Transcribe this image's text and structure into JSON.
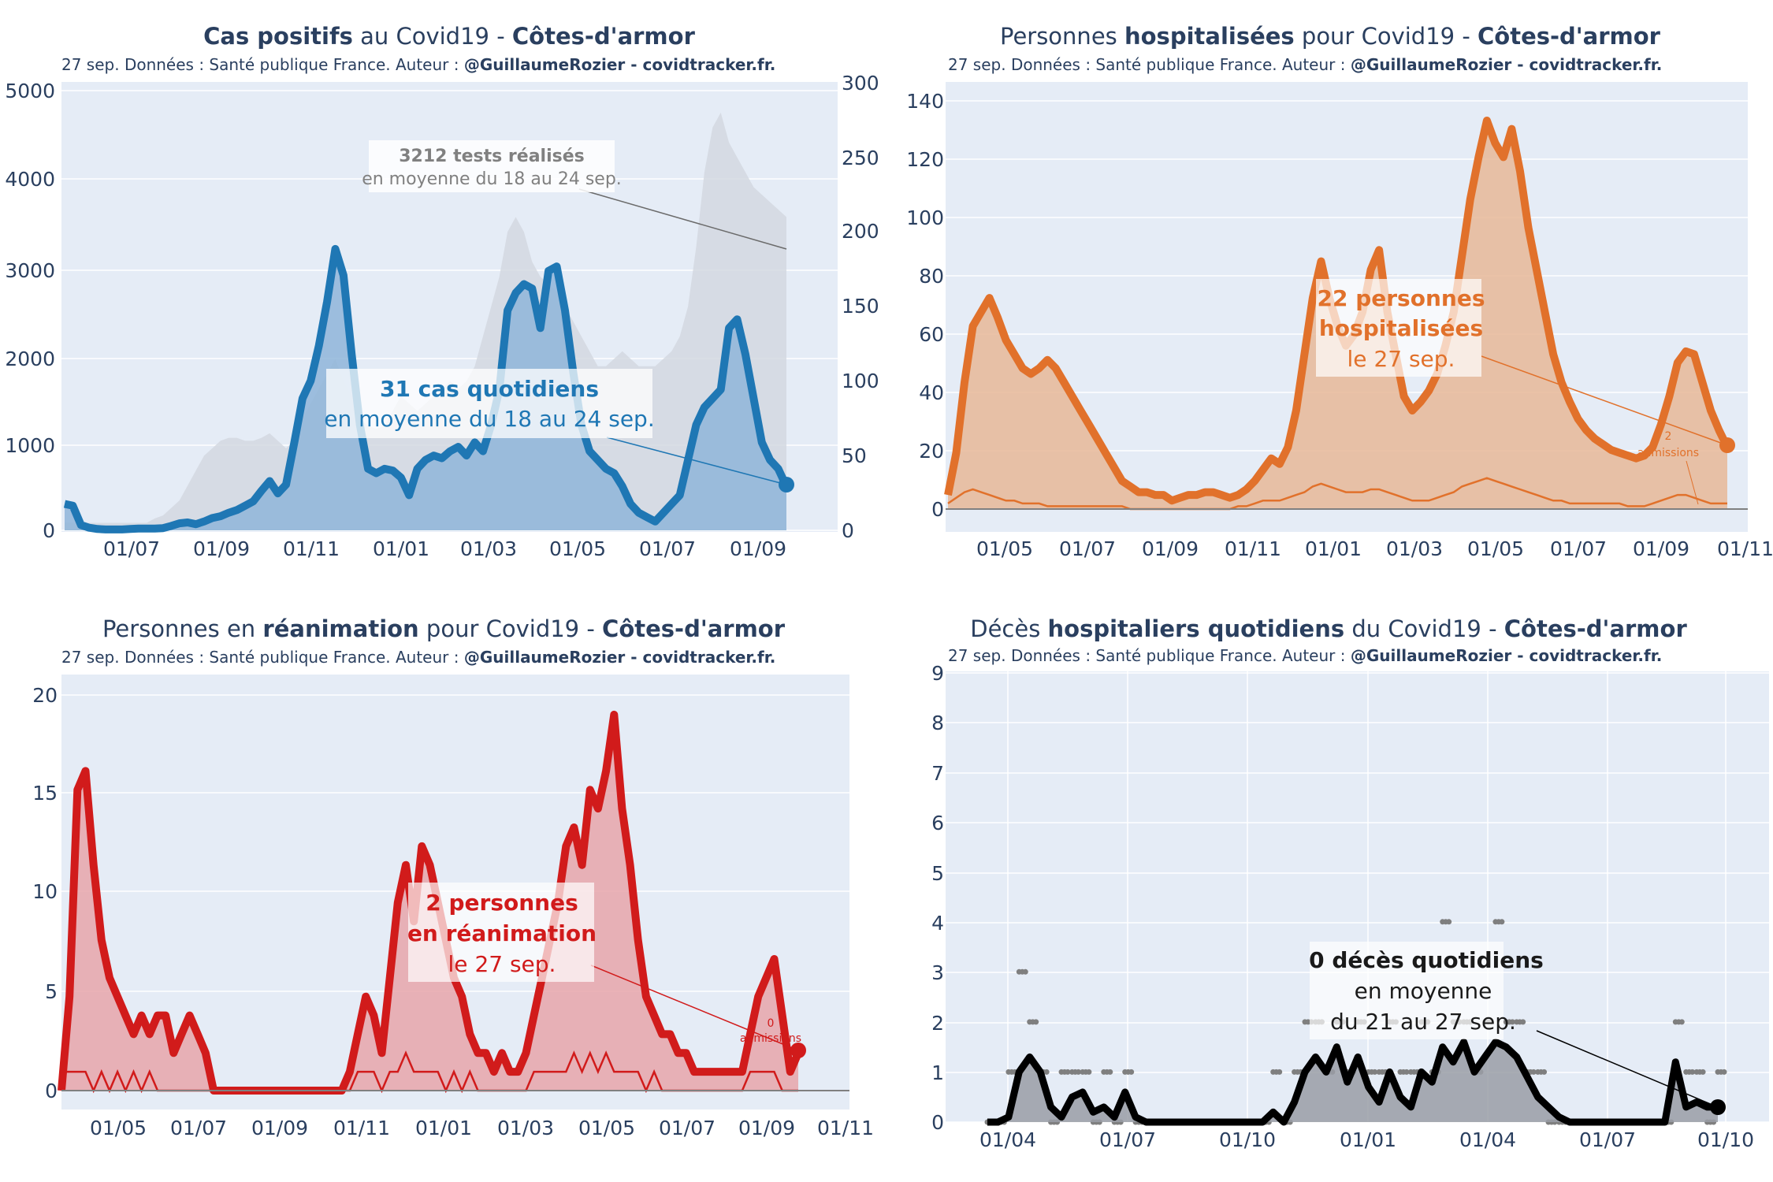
{
  "chart_data": [
    {
      "type": "line",
      "id": "cas",
      "title_parts": [
        {
          "text": "Cas positifs",
          "bold": true
        },
        {
          "text": " au Covid19 - ",
          "bold": false
        },
        {
          "text": "Côtes-d'armor",
          "bold": true
        }
      ],
      "subtitle_parts": [
        {
          "text": "27 sep. Données : Santé publique France. Auteur : ",
          "bold": false
        },
        {
          "text": "@GuillaumeRozier - covidtracker.fr.",
          "bold": true
        }
      ],
      "color": "#1f77b4",
      "fill_color": "#8fb5d9",
      "secondary_color": "#d3d8e0",
      "x_ticks": [
        "01/07",
        "01/09",
        "01/11",
        "01/01",
        "01/03",
        "01/05",
        "01/07",
        "01/09"
      ],
      "ylim": [
        0,
        5000
      ],
      "y_ticks": [
        "0",
        "1000",
        "2000",
        "3000",
        "4000",
        "5000"
      ],
      "y2lim": [
        0,
        300
      ],
      "y2_ticks": [
        "0",
        "50",
        "100",
        "150",
        "200",
        "250",
        "300"
      ],
      "series": [
        {
          "name": "Cas quotidiens (moyenne 7j)",
          "values": [
            300,
            280,
            60,
            30,
            15,
            10,
            10,
            10,
            15,
            20,
            20,
            20,
            25,
            50,
            80,
            90,
            70,
            100,
            140,
            160,
            200,
            230,
            280,
            330,
            450,
            560,
            420,
            520,
            1000,
            1500,
            1700,
            2100,
            2600,
            3200,
            2900,
            2000,
            1200,
            700,
            650,
            700,
            680,
            600,
            400,
            700,
            800,
            850,
            820,
            900,
            950,
            850,
            1000,
            900,
            1200,
            1600,
            2500,
            2700,
            2800,
            2750,
            2300,
            2950,
            3000,
            2500,
            1800,
            1200,
            900,
            800,
            700,
            650,
            500,
            300,
            200,
            150,
            100,
            200,
            300,
            400,
            800,
            1200,
            1400,
            1500,
            1600,
            2300,
            2400,
            2000,
            1500,
            1000,
            800,
            700,
            500
          ]
        },
        {
          "name": "Tests réalisés (axe secondaire)",
          "values": [
            5,
            5,
            5,
            5,
            5,
            5,
            5,
            5,
            5,
            5,
            5,
            8,
            10,
            15,
            20,
            30,
            40,
            50,
            55,
            60,
            62,
            62,
            60,
            60,
            62,
            65,
            60,
            55,
            60,
            75,
            85,
            95,
            105,
            115,
            100,
            90,
            75,
            70,
            68,
            70,
            80,
            90,
            85,
            80,
            85,
            90,
            95,
            100,
            95,
            100,
            110,
            130,
            150,
            170,
            200,
            210,
            200,
            180,
            170,
            165,
            160,
            150,
            140,
            130,
            120,
            110,
            110,
            115,
            120,
            115,
            110,
            110,
            110,
            115,
            120,
            130,
            150,
            190,
            240,
            270,
            280,
            260,
            250,
            240,
            230,
            225,
            220,
            215,
            210
          ]
        }
      ],
      "annotation_main": {
        "bold": "31 cas quotidiens",
        "normal": "en moyenne du 18 au 24 sep."
      },
      "annotation_secondary": {
        "bold": "3212 tests réalisés",
        "normal": "en moyenne du 18 au 24 sep."
      }
    },
    {
      "type": "line",
      "id": "hosp",
      "title_parts": [
        {
          "text": "Personnes ",
          "bold": false
        },
        {
          "text": "hospitalisées",
          "bold": true
        },
        {
          "text": " pour Covid19 - ",
          "bold": false
        },
        {
          "text": "Côtes-d'armor",
          "bold": true
        }
      ],
      "subtitle_parts": [
        {
          "text": "27 sep. Données : Santé publique France. Auteur : ",
          "bold": false
        },
        {
          "text": "@GuillaumeRozier - covidtracker.fr.",
          "bold": true
        }
      ],
      "color": "#e1712b",
      "fill_color": "#e8b898",
      "x_ticks": [
        "01/05",
        "01/07",
        "01/09",
        "01/11",
        "01/01",
        "01/03",
        "01/05",
        "01/07",
        "01/09",
        "01/11"
      ],
      "ylim": [
        0,
        145
      ],
      "y_ticks": [
        "0",
        "20",
        "40",
        "60",
        "80",
        "100",
        "120",
        "140"
      ],
      "series": [
        {
          "name": "Hospitalisations",
          "values": [
            5,
            20,
            45,
            65,
            70,
            75,
            68,
            60,
            55,
            50,
            48,
            50,
            53,
            50,
            45,
            40,
            35,
            30,
            25,
            20,
            15,
            10,
            8,
            6,
            6,
            5,
            5,
            3,
            4,
            5,
            5,
            6,
            6,
            5,
            4,
            5,
            7,
            10,
            14,
            18,
            16,
            22,
            35,
            55,
            75,
            88,
            75,
            65,
            58,
            62,
            70,
            85,
            92,
            70,
            55,
            40,
            35,
            38,
            42,
            48,
            58,
            70,
            90,
            110,
            125,
            138,
            130,
            125,
            135,
            120,
            100,
            85,
            70,
            55,
            45,
            38,
            32,
            28,
            25,
            23,
            21,
            20,
            19,
            18,
            19,
            22,
            30,
            40,
            52,
            56,
            55,
            45,
            35,
            28,
            22
          ]
        },
        {
          "name": "Admissions",
          "values": [
            2,
            4,
            6,
            7,
            6,
            5,
            4,
            3,
            3,
            2,
            2,
            2,
            1,
            1,
            1,
            1,
            1,
            1,
            1,
            1,
            1,
            1,
            0,
            0,
            0,
            0,
            0,
            0,
            0,
            0,
            0,
            0,
            0,
            0,
            0,
            1,
            1,
            2,
            3,
            3,
            3,
            4,
            5,
            6,
            8,
            9,
            8,
            7,
            6,
            6,
            6,
            7,
            7,
            6,
            5,
            4,
            3,
            3,
            3,
            4,
            5,
            6,
            8,
            9,
            10,
            11,
            10,
            9,
            8,
            7,
            6,
            5,
            4,
            3,
            3,
            2,
            2,
            2,
            2,
            2,
            2,
            2,
            1,
            1,
            1,
            2,
            3,
            4,
            5,
            5,
            4,
            3,
            2,
            2,
            2
          ]
        }
      ],
      "annotation_main": {
        "bold_lines": [
          "22 personnes",
          "hospitalisées"
        ],
        "normal": "le 27 sep."
      },
      "annotation_secondary": {
        "line1": "2",
        "line2": "admissions"
      }
    },
    {
      "type": "line",
      "id": "rea",
      "title_parts": [
        {
          "text": "Personnes en ",
          "bold": false
        },
        {
          "text": "réanimation",
          "bold": true
        },
        {
          "text": " pour Covid19 - ",
          "bold": false
        },
        {
          "text": "Côtes-d'armor",
          "bold": true
        }
      ],
      "subtitle_parts": [
        {
          "text": "27 sep. Données : Santé publique France. Auteur : ",
          "bold": false
        },
        {
          "text": "@GuillaumeRozier - covidtracker.fr.",
          "bold": true
        }
      ],
      "color": "#d11b1b",
      "fill_color": "#e8a6aa",
      "x_ticks": [
        "01/05",
        "01/07",
        "01/09",
        "01/11",
        "01/01",
        "01/03",
        "01/05",
        "01/07",
        "01/09",
        "01/11"
      ],
      "ylim": [
        0,
        21
      ],
      "y_ticks": [
        "0",
        "5",
        "10",
        "15",
        "20"
      ],
      "series": [
        {
          "name": "Réanimation",
          "values": [
            0,
            5,
            16,
            17,
            12,
            8,
            6,
            5,
            4,
            3,
            4,
            3,
            4,
            4,
            2,
            3,
            4,
            3,
            2,
            0,
            0,
            0,
            0,
            0,
            0,
            0,
            0,
            0,
            0,
            0,
            0,
            0,
            0,
            0,
            0,
            0,
            1,
            3,
            5,
            4,
            2,
            6,
            10,
            12,
            9,
            13,
            12,
            10,
            8,
            6,
            5,
            3,
            2,
            2,
            1,
            2,
            1,
            1,
            2,
            4,
            6,
            8,
            10,
            13,
            14,
            12,
            16,
            15,
            17,
            20,
            15,
            12,
            8,
            5,
            4,
            3,
            3,
            2,
            2,
            1,
            1,
            1,
            1,
            1,
            1,
            1,
            3,
            5,
            6,
            7,
            4,
            1,
            2
          ]
        },
        {
          "name": "Admissions",
          "values": [
            1,
            1,
            1,
            1,
            0,
            1,
            0,
            1,
            0,
            1,
            0,
            1,
            0,
            0,
            0,
            0,
            0,
            0,
            0,
            0,
            0,
            0,
            0,
            0,
            0,
            0,
            0,
            0,
            0,
            0,
            0,
            0,
            0,
            0,
            0,
            0,
            0,
            1,
            1,
            1,
            0,
            1,
            1,
            2,
            1,
            1,
            1,
            1,
            0,
            1,
            0,
            1,
            0,
            0,
            0,
            0,
            0,
            0,
            0,
            1,
            1,
            1,
            1,
            1,
            2,
            1,
            2,
            1,
            2,
            1,
            1,
            1,
            1,
            0,
            1,
            0,
            0,
            0,
            0,
            0,
            0,
            0,
            0,
            0,
            0,
            0,
            1,
            1,
            1,
            1,
            0,
            0,
            0
          ]
        }
      ],
      "annotation_main": {
        "bold_lines": [
          "2 personnes",
          "en réanimation"
        ],
        "normal": "le 27 sep."
      },
      "annotation_secondary": {
        "line1": "0",
        "line2": "admissions"
      }
    },
    {
      "type": "line",
      "id": "dc",
      "title_parts": [
        {
          "text": "Décès ",
          "bold": false
        },
        {
          "text": "hospitaliers quotidiens",
          "bold": true
        },
        {
          "text": " du Covid19 - ",
          "bold": false
        },
        {
          "text": "Côtes-d'armor",
          "bold": true
        }
      ],
      "subtitle_parts": [
        {
          "text": "27 sep. Données : Santé publique France. Auteur : ",
          "bold": false
        },
        {
          "text": "@GuillaumeRozier - covidtracker.fr.",
          "bold": true
        }
      ],
      "color": "#000000",
      "fill_color": "#9a9ea6",
      "x_ticks": [
        "01/04",
        "01/07",
        "01/10",
        "01/01",
        "01/04",
        "01/07",
        "01/10"
      ],
      "ylim": [
        0,
        9
      ],
      "y_ticks": [
        "0",
        "1",
        "2",
        "3",
        "4",
        "5",
        "6",
        "7",
        "8",
        "9"
      ],
      "series": [
        {
          "name": "Décès (moyenne 7j)",
          "values": [
            0,
            0,
            0.1,
            1.0,
            1.3,
            1.0,
            0.3,
            0.1,
            0.5,
            0.6,
            0.2,
            0.3,
            0.1,
            0.6,
            0.1,
            0,
            0,
            0,
            0,
            0,
            0,
            0,
            0,
            0,
            0,
            0,
            0,
            0.2,
            0,
            0.4,
            1.0,
            1.3,
            1.0,
            1.5,
            0.8,
            1.3,
            0.7,
            0.4,
            1.0,
            0.5,
            0.3,
            1.0,
            0.8,
            1.5,
            1.2,
            1.6,
            1.0,
            1.3,
            1.6,
            1.5,
            1.3,
            0.9,
            0.5,
            0.3,
            0.1,
            0,
            0,
            0,
            0,
            0,
            0,
            0,
            0,
            0,
            0,
            1.2,
            0.3,
            0.4,
            0.3,
            0.3
          ]
        },
        {
          "name": "Décès quotidiens",
          "values": [
            0,
            0,
            1,
            3,
            2,
            1,
            0,
            1,
            1,
            1,
            0,
            1,
            0,
            1,
            0,
            0,
            0,
            0,
            0,
            0,
            0,
            0,
            0,
            0,
            0,
            0,
            0,
            1,
            0,
            1,
            2,
            2,
            1,
            2,
            1,
            2,
            1,
            1,
            2,
            1,
            1,
            2,
            1,
            4,
            2,
            2,
            1,
            2,
            4,
            2,
            2,
            1,
            1,
            0,
            0,
            0,
            0,
            0,
            0,
            0,
            0,
            0,
            0,
            0,
            0,
            2,
            1,
            1,
            0,
            1
          ]
        }
      ],
      "annotation_main": {
        "bold": "0 décès quotidiens",
        "normal_lines": [
          "en moyenne",
          "du 21 au 27 sep."
        ]
      }
    }
  ]
}
